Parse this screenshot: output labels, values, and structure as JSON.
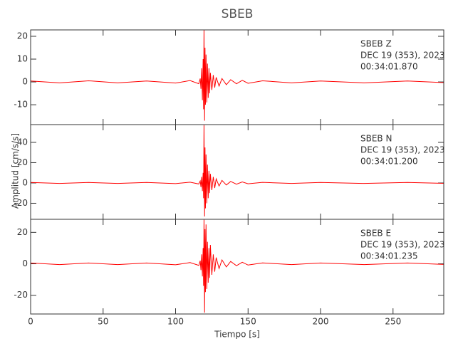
{
  "chart_data": [
    {
      "type": "line",
      "title": "SBEB",
      "annotations": [
        "SBEB   Z",
        "DEC 19 (353), 2023",
        "00:34:01.870"
      ],
      "x": [
        0,
        20,
        40,
        60,
        80,
        100,
        110,
        116,
        117,
        117.5,
        118,
        118.5,
        119,
        119.3,
        119.6,
        120,
        120.3,
        120.6,
        121,
        121.5,
        122,
        122.5,
        123,
        123.5,
        124,
        125,
        126,
        127,
        128,
        130,
        132,
        135,
        138,
        142,
        146,
        150,
        160,
        180,
        200,
        230,
        260,
        285
      ],
      "series": [
        {
          "color": "#ff0000",
          "values": [
            0.4,
            -0.4,
            0.5,
            -0.4,
            0.4,
            -0.5,
            0.6,
            -0.8,
            1.5,
            -3,
            6,
            -8,
            10,
            -12,
            23,
            -17,
            15,
            -10,
            12,
            -9,
            8,
            -7,
            6,
            -5,
            4,
            -3.5,
            3,
            -2.5,
            2,
            -1.8,
            1.5,
            -1.2,
            1,
            -0.8,
            0.7,
            -0.6,
            0.5,
            -0.4,
            0.4,
            -0.4,
            0.4,
            -0.3
          ]
        }
      ],
      "xlim": [
        0,
        285
      ],
      "xticks": [
        0,
        50,
        100,
        150,
        200,
        250
      ],
      "ylim": [
        -18.7,
        22.8
      ],
      "yticks": [
        -10,
        0,
        10,
        20
      ]
    },
    {
      "type": "line",
      "ylabel": "Amplitud [cm/s/s]",
      "annotations": [
        "SBEB   N",
        "DEC 19 (353), 2023",
        "00:34:01.200"
      ],
      "x": [
        0,
        20,
        40,
        60,
        80,
        100,
        110,
        116,
        117,
        117.5,
        118,
        118.5,
        119,
        119.3,
        119.6,
        120,
        120.3,
        120.6,
        121,
        121.5,
        122,
        122.5,
        123,
        123.5,
        124,
        125,
        126,
        127,
        128,
        130,
        132,
        135,
        138,
        142,
        146,
        150,
        160,
        180,
        200,
        230,
        260,
        285
      ],
      "series": [
        {
          "color": "#ff0000",
          "values": [
            0.5,
            -0.5,
            0.5,
            -0.5,
            0.5,
            -0.6,
            0.8,
            -1,
            2,
            -4,
            6,
            -8,
            10,
            -15,
            57,
            -33,
            35,
            -25,
            28,
            -20,
            18,
            -15,
            12,
            -10,
            9,
            -7,
            6,
            -5,
            4,
            -3,
            2.5,
            -2,
            1.5,
            -1.2,
            1,
            -0.8,
            0.6,
            -0.5,
            0.5,
            -0.5,
            0.5,
            -0.4
          ]
        }
      ],
      "xlim": [
        0,
        285
      ],
      "xticks": [
        0,
        50,
        100,
        150,
        200,
        250
      ],
      "ylim": [
        -35.8,
        57.5
      ],
      "yticks": [
        -20,
        0,
        20,
        40
      ]
    },
    {
      "type": "line",
      "xlabel": "Tiempo [s]",
      "annotations": [
        "SBEB   E",
        "DEC 19 (353), 2023",
        "00:34:01.235"
      ],
      "x": [
        0,
        20,
        40,
        60,
        80,
        100,
        110,
        116,
        117,
        117.5,
        118,
        118.5,
        119,
        119.3,
        119.6,
        120,
        120.3,
        120.6,
        121,
        121.5,
        122,
        122.5,
        123,
        123.5,
        124,
        125,
        126,
        127,
        128,
        130,
        132,
        135,
        138,
        142,
        146,
        150,
        160,
        180,
        200,
        230,
        260,
        285
      ],
      "series": [
        {
          "color": "#ff0000",
          "values": [
            0.5,
            -0.5,
            0.5,
            -0.5,
            0.5,
            -0.6,
            0.8,
            -1,
            2,
            -4,
            6,
            -8,
            10,
            -14,
            28,
            -31,
            22,
            -18,
            25,
            -16,
            14,
            -12,
            10,
            -9,
            12,
            -7,
            6,
            -5,
            4,
            -3,
            2.5,
            -2,
            1.5,
            -1.2,
            1,
            -0.8,
            0.6,
            -0.5,
            0.5,
            -0.5,
            0.5,
            -0.4
          ]
        }
      ],
      "xlim": [
        0,
        285
      ],
      "xticks": [
        0,
        50,
        100,
        150,
        200,
        250
      ],
      "ylim": [
        -31.9,
        28.3
      ],
      "yticks": [
        -20,
        0,
        20
      ]
    }
  ]
}
